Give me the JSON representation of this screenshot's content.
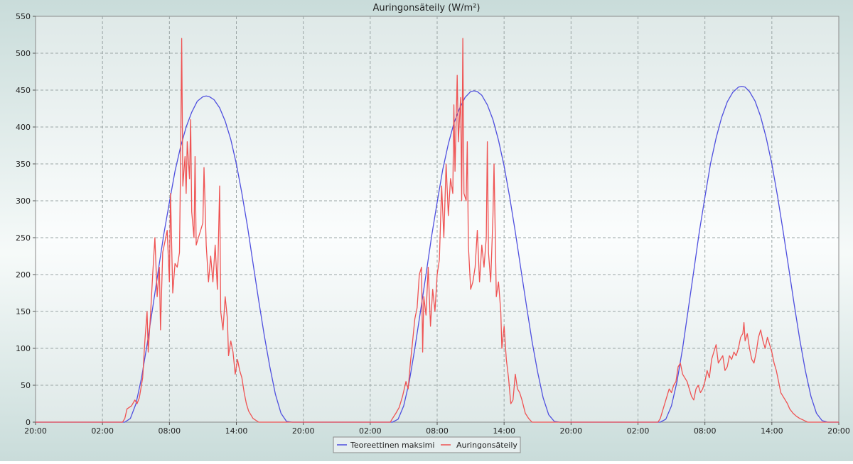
{
  "chart_data": {
    "type": "line",
    "title": "Auringonsäteily (W/m²)",
    "xlabel": "",
    "ylabel": "",
    "ylim": [
      0,
      550
    ],
    "xlim_hours": [
      0,
      72
    ],
    "yticks": [
      0,
      50,
      100,
      150,
      200,
      250,
      300,
      350,
      400,
      450,
      500,
      550
    ],
    "xticks": [
      {
        "t": 0,
        "label": "20:00"
      },
      {
        "t": 6,
        "label": "02:00"
      },
      {
        "t": 12,
        "label": "08:00"
      },
      {
        "t": 18,
        "label": "14:00"
      },
      {
        "t": 24,
        "label": "20:00"
      },
      {
        "t": 30,
        "label": "02:00"
      },
      {
        "t": 36,
        "label": "08:00"
      },
      {
        "t": 42,
        "label": "14:00"
      },
      {
        "t": 48,
        "label": "20:00"
      },
      {
        "t": 54,
        "label": "02:00"
      },
      {
        "t": 60,
        "label": "08:00"
      },
      {
        "t": 66,
        "label": "14:00"
      },
      {
        "t": 72,
        "label": "20:00"
      }
    ],
    "grid": true,
    "legend_position": "bottom-center",
    "series": [
      {
        "name": "Teoreettinen maksimi",
        "color": "#4f4fdf",
        "points": [
          [
            0,
            0
          ],
          [
            8.0,
            0
          ],
          [
            8.5,
            5
          ],
          [
            9.0,
            25
          ],
          [
            9.5,
            60
          ],
          [
            10.0,
            105
          ],
          [
            10.5,
            155
          ],
          [
            11.0,
            205
          ],
          [
            11.5,
            255
          ],
          [
            12.0,
            298
          ],
          [
            12.5,
            340
          ],
          [
            13.0,
            373
          ],
          [
            13.5,
            400
          ],
          [
            14.0,
            420
          ],
          [
            14.5,
            435
          ],
          [
            15.0,
            441
          ],
          [
            15.3,
            442
          ],
          [
            15.6,
            441
          ],
          [
            16.0,
            437
          ],
          [
            16.5,
            426
          ],
          [
            17.0,
            408
          ],
          [
            17.5,
            383
          ],
          [
            18.0,
            350
          ],
          [
            18.5,
            310
          ],
          [
            19.0,
            265
          ],
          [
            19.5,
            215
          ],
          [
            20.0,
            165
          ],
          [
            20.5,
            118
          ],
          [
            21.0,
            75
          ],
          [
            21.5,
            38
          ],
          [
            22.0,
            12
          ],
          [
            22.5,
            1
          ],
          [
            23.0,
            0
          ],
          [
            32.0,
            0
          ],
          [
            32.5,
            4
          ],
          [
            33.0,
            22
          ],
          [
            33.5,
            55
          ],
          [
            34.0,
            100
          ],
          [
            34.5,
            150
          ],
          [
            35.0,
            200
          ],
          [
            35.5,
            252
          ],
          [
            36.0,
            298
          ],
          [
            36.5,
            342
          ],
          [
            37.0,
            377
          ],
          [
            37.5,
            405
          ],
          [
            38.0,
            425
          ],
          [
            38.5,
            440
          ],
          [
            39.0,
            448
          ],
          [
            39.3,
            449
          ],
          [
            39.6,
            448
          ],
          [
            40.0,
            443
          ],
          [
            40.5,
            430
          ],
          [
            41.0,
            410
          ],
          [
            41.5,
            382
          ],
          [
            42.0,
            347
          ],
          [
            42.5,
            305
          ],
          [
            43.0,
            258
          ],
          [
            43.5,
            208
          ],
          [
            44.0,
            158
          ],
          [
            44.5,
            110
          ],
          [
            45.0,
            68
          ],
          [
            45.5,
            33
          ],
          [
            46.0,
            10
          ],
          [
            46.5,
            1
          ],
          [
            47.0,
            0
          ],
          [
            56.0,
            0
          ],
          [
            56.5,
            4
          ],
          [
            57.0,
            22
          ],
          [
            57.5,
            55
          ],
          [
            58.0,
            100
          ],
          [
            58.5,
            152
          ],
          [
            59.0,
            205
          ],
          [
            59.5,
            258
          ],
          [
            60.0,
            305
          ],
          [
            60.5,
            350
          ],
          [
            61.0,
            385
          ],
          [
            61.5,
            413
          ],
          [
            62.0,
            434
          ],
          [
            62.5,
            447
          ],
          [
            63.0,
            454
          ],
          [
            63.3,
            455
          ],
          [
            63.6,
            454
          ],
          [
            64.0,
            448
          ],
          [
            64.5,
            435
          ],
          [
            65.0,
            414
          ],
          [
            65.5,
            385
          ],
          [
            66.0,
            350
          ],
          [
            66.5,
            307
          ],
          [
            67.0,
            260
          ],
          [
            67.5,
            210
          ],
          [
            68.0,
            160
          ],
          [
            68.5,
            112
          ],
          [
            69.0,
            70
          ],
          [
            69.5,
            35
          ],
          [
            70.0,
            12
          ],
          [
            70.5,
            2
          ],
          [
            71.0,
            0
          ],
          [
            72.0,
            0
          ]
        ]
      },
      {
        "name": "Auringonsäteily",
        "color": "#ef5353",
        "points": [
          [
            0,
            0
          ],
          [
            7.8,
            0
          ],
          [
            8.0,
            5
          ],
          [
            8.2,
            18
          ],
          [
            8.6,
            22
          ],
          [
            8.9,
            30
          ],
          [
            9.1,
            25
          ],
          [
            9.3,
            33
          ],
          [
            9.6,
            60
          ],
          [
            9.8,
            110
          ],
          [
            10.0,
            150
          ],
          [
            10.1,
            95
          ],
          [
            10.3,
            145
          ],
          [
            10.5,
            200
          ],
          [
            10.7,
            250
          ],
          [
            10.9,
            170
          ],
          [
            11.1,
            210
          ],
          [
            11.2,
            125
          ],
          [
            11.4,
            230
          ],
          [
            11.6,
            245
          ],
          [
            11.8,
            260
          ],
          [
            12.0,
            190
          ],
          [
            12.1,
            310
          ],
          [
            12.3,
            175
          ],
          [
            12.5,
            215
          ],
          [
            12.7,
            210
          ],
          [
            12.9,
            230
          ],
          [
            13.0,
            350
          ],
          [
            13.1,
            520
          ],
          [
            13.2,
            320
          ],
          [
            13.4,
            360
          ],
          [
            13.5,
            310
          ],
          [
            13.6,
            380
          ],
          [
            13.8,
            330
          ],
          [
            13.9,
            410
          ],
          [
            14.0,
            285
          ],
          [
            14.2,
            250
          ],
          [
            14.3,
            360
          ],
          [
            14.4,
            240
          ],
          [
            14.6,
            250
          ],
          [
            14.8,
            260
          ],
          [
            15.0,
            270
          ],
          [
            15.1,
            345
          ],
          [
            15.3,
            240
          ],
          [
            15.5,
            190
          ],
          [
            15.7,
            225
          ],
          [
            15.9,
            190
          ],
          [
            16.1,
            240
          ],
          [
            16.3,
            180
          ],
          [
            16.5,
            320
          ],
          [
            16.6,
            150
          ],
          [
            16.8,
            125
          ],
          [
            17.0,
            170
          ],
          [
            17.2,
            140
          ],
          [
            17.3,
            90
          ],
          [
            17.5,
            110
          ],
          [
            17.7,
            95
          ],
          [
            17.9,
            65
          ],
          [
            18.1,
            85
          ],
          [
            18.3,
            70
          ],
          [
            18.5,
            60
          ],
          [
            18.7,
            40
          ],
          [
            18.9,
            25
          ],
          [
            19.1,
            15
          ],
          [
            19.5,
            5
          ],
          [
            20.0,
            0
          ],
          [
            31.8,
            0
          ],
          [
            32.0,
            5
          ],
          [
            32.3,
            12
          ],
          [
            32.6,
            20
          ],
          [
            32.9,
            35
          ],
          [
            33.2,
            55
          ],
          [
            33.4,
            45
          ],
          [
            33.6,
            80
          ],
          [
            33.8,
            110
          ],
          [
            34.0,
            140
          ],
          [
            34.2,
            155
          ],
          [
            34.4,
            200
          ],
          [
            34.6,
            210
          ],
          [
            34.7,
            95
          ],
          [
            34.8,
            170
          ],
          [
            35.0,
            145
          ],
          [
            35.2,
            210
          ],
          [
            35.4,
            130
          ],
          [
            35.6,
            180
          ],
          [
            35.8,
            150
          ],
          [
            36.0,
            200
          ],
          [
            36.2,
            220
          ],
          [
            36.3,
            270
          ],
          [
            36.4,
            320
          ],
          [
            36.6,
            250
          ],
          [
            36.8,
            350
          ],
          [
            37.0,
            280
          ],
          [
            37.2,
            330
          ],
          [
            37.4,
            310
          ],
          [
            37.5,
            430
          ],
          [
            37.6,
            340
          ],
          [
            37.8,
            470
          ],
          [
            37.9,
            380
          ],
          [
            38.1,
            440
          ],
          [
            38.2,
            300
          ],
          [
            38.3,
            520
          ],
          [
            38.4,
            310
          ],
          [
            38.6,
            300
          ],
          [
            38.7,
            380
          ],
          [
            38.8,
            240
          ],
          [
            39.0,
            180
          ],
          [
            39.2,
            190
          ],
          [
            39.4,
            210
          ],
          [
            39.6,
            260
          ],
          [
            39.8,
            190
          ],
          [
            40.0,
            240
          ],
          [
            40.2,
            210
          ],
          [
            40.4,
            250
          ],
          [
            40.5,
            380
          ],
          [
            40.6,
            230
          ],
          [
            40.8,
            190
          ],
          [
            41.0,
            280
          ],
          [
            41.1,
            350
          ],
          [
            41.3,
            170
          ],
          [
            41.5,
            190
          ],
          [
            41.7,
            150
          ],
          [
            41.8,
            100
          ],
          [
            42.0,
            130
          ],
          [
            42.2,
            85
          ],
          [
            42.4,
            60
          ],
          [
            42.6,
            25
          ],
          [
            42.8,
            30
          ],
          [
            43.0,
            65
          ],
          [
            43.2,
            45
          ],
          [
            43.4,
            40
          ],
          [
            43.6,
            30
          ],
          [
            43.9,
            12
          ],
          [
            44.2,
            5
          ],
          [
            44.5,
            0
          ],
          [
            55.8,
            0
          ],
          [
            56.0,
            5
          ],
          [
            56.2,
            15
          ],
          [
            56.5,
            30
          ],
          [
            56.8,
            45
          ],
          [
            57.0,
            40
          ],
          [
            57.2,
            50
          ],
          [
            57.4,
            55
          ],
          [
            57.6,
            75
          ],
          [
            57.8,
            80
          ],
          [
            58.0,
            65
          ],
          [
            58.2,
            60
          ],
          [
            58.4,
            55
          ],
          [
            58.6,
            45
          ],
          [
            58.8,
            35
          ],
          [
            59.0,
            30
          ],
          [
            59.2,
            45
          ],
          [
            59.4,
            50
          ],
          [
            59.6,
            40
          ],
          [
            59.8,
            45
          ],
          [
            60.0,
            55
          ],
          [
            60.2,
            70
          ],
          [
            60.4,
            60
          ],
          [
            60.6,
            85
          ],
          [
            60.8,
            95
          ],
          [
            61.0,
            105
          ],
          [
            61.2,
            80
          ],
          [
            61.4,
            85
          ],
          [
            61.6,
            90
          ],
          [
            61.8,
            70
          ],
          [
            62.0,
            75
          ],
          [
            62.2,
            90
          ],
          [
            62.4,
            85
          ],
          [
            62.6,
            95
          ],
          [
            62.8,
            90
          ],
          [
            63.0,
            100
          ],
          [
            63.2,
            115
          ],
          [
            63.4,
            120
          ],
          [
            63.5,
            135
          ],
          [
            63.6,
            110
          ],
          [
            63.8,
            120
          ],
          [
            64.0,
            100
          ],
          [
            64.2,
            85
          ],
          [
            64.4,
            80
          ],
          [
            64.6,
            95
          ],
          [
            64.8,
            115
          ],
          [
            65.0,
            125
          ],
          [
            65.2,
            110
          ],
          [
            65.4,
            100
          ],
          [
            65.6,
            115
          ],
          [
            65.8,
            105
          ],
          [
            66.0,
            95
          ],
          [
            66.2,
            80
          ],
          [
            66.4,
            70
          ],
          [
            66.6,
            55
          ],
          [
            66.8,
            40
          ],
          [
            67.0,
            35
          ],
          [
            67.2,
            30
          ],
          [
            67.4,
            25
          ],
          [
            67.6,
            18
          ],
          [
            67.9,
            12
          ],
          [
            68.2,
            8
          ],
          [
            68.5,
            5
          ],
          [
            68.8,
            3
          ],
          [
            69.2,
            0
          ],
          [
            72.0,
            0
          ]
        ]
      }
    ]
  }
}
